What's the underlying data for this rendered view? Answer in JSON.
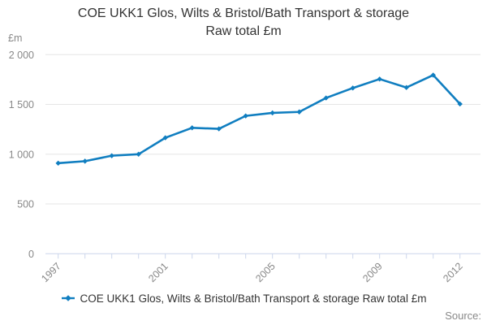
{
  "title": {
    "line1": "COE UKK1 Glos, Wilts & Bristol/Bath Transport & storage",
    "line2": "Raw total £m"
  },
  "y_axis": {
    "unit": "£m",
    "tick_labels": [
      "0",
      "500",
      "1 000",
      "1 500",
      "2 000"
    ]
  },
  "x_axis": {
    "labeled_years": [
      1997,
      2001,
      2005,
      2009,
      2012
    ]
  },
  "legend": {
    "label": "COE UKK1 Glos, Wilts & Bristol/Bath Transport & storage Raw total £m"
  },
  "footer": {
    "source_label": "Source:"
  },
  "colors": {
    "series": "#107ec0",
    "gridline": "#e6e6e6",
    "axis": "#ccd6eb",
    "tick_text": "#888888",
    "title_text": "#333333"
  },
  "chart_data": {
    "type": "line",
    "title": "COE UKK1 Glos, Wilts & Bristol/Bath Transport & storage Raw total £m",
    "x": [
      1997,
      1998,
      1999,
      2000,
      2001,
      2002,
      2003,
      2004,
      2005,
      2006,
      2007,
      2008,
      2009,
      2010,
      2011,
      2012
    ],
    "x_tick_labels": [
      "1997",
      "2001",
      "2005",
      "2009",
      "2012"
    ],
    "series": [
      {
        "name": "COE UKK1 Glos, Wilts & Bristol/Bath Transport & storage Raw total £m",
        "color": "#107ec0",
        "values": [
          910,
          930,
          985,
          1000,
          1165,
          1265,
          1255,
          1385,
          1415,
          1425,
          1565,
          1665,
          1755,
          1670,
          1795,
          1505
        ]
      }
    ],
    "ylabel": "£m",
    "ylim": [
      0,
      2000
    ],
    "y_ticks": [
      0,
      500,
      1000,
      1500,
      2000
    ],
    "grid": true,
    "legend_position": "bottom"
  }
}
